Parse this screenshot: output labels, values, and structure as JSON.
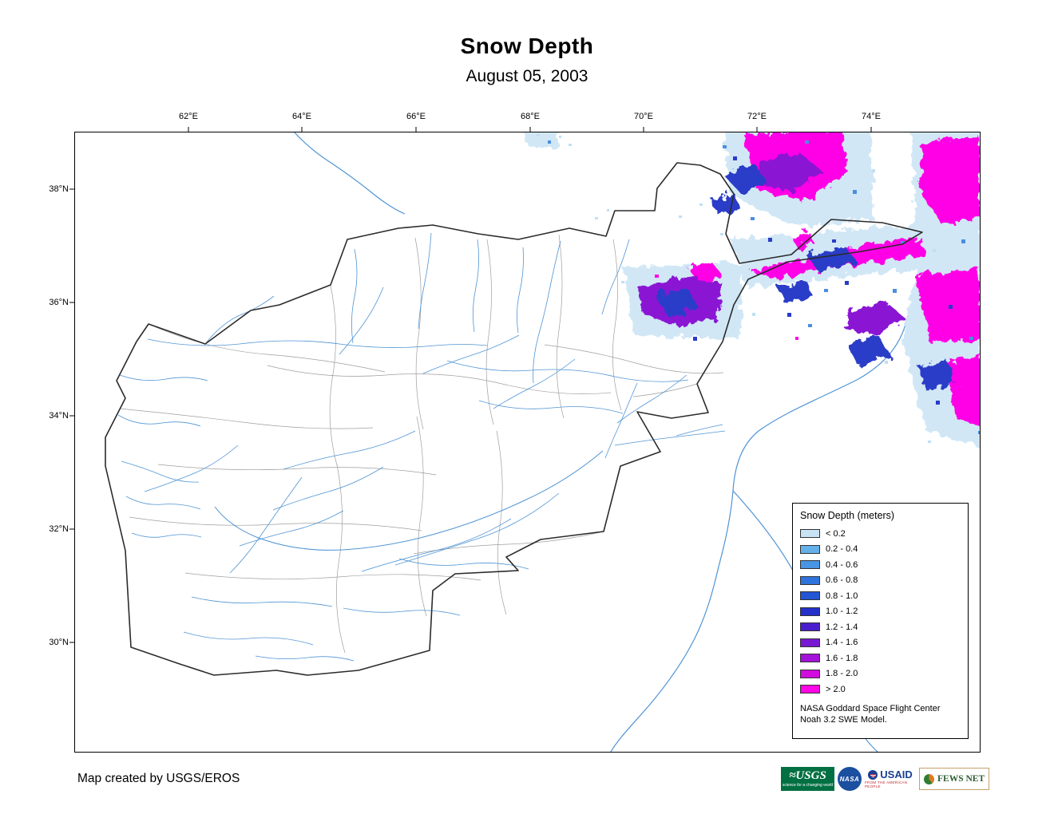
{
  "title": "Snow Depth",
  "subtitle": "August 05, 2003",
  "map": {
    "lon_ticks": [
      "62°E",
      "64°E",
      "66°E",
      "68°E",
      "70°E",
      "72°E",
      "74°E"
    ],
    "lat_ticks": [
      "38°N",
      "36°N",
      "34°N",
      "32°N",
      "30°N"
    ],
    "colors": {
      "country_border": "#2b2b2b",
      "river": "#4f94d4",
      "watershed": "#9e9e9e"
    }
  },
  "legend": {
    "title": "Snow Depth (meters)",
    "items": [
      {
        "label": "< 0.2",
        "color": "#c8e4f4"
      },
      {
        "label": "0.2 - 0.4",
        "color": "#64b1ea"
      },
      {
        "label": "0.4 - 0.6",
        "color": "#4795e4"
      },
      {
        "label": "0.6 - 0.8",
        "color": "#2f74dc"
      },
      {
        "label": "0.8 - 1.0",
        "color": "#2355d4"
      },
      {
        "label": "1.0 - 1.2",
        "color": "#2430c8"
      },
      {
        "label": "1.2 - 1.4",
        "color": "#4b1ecd"
      },
      {
        "label": "1.4 - 1.6",
        "color": "#7718d2"
      },
      {
        "label": "1.6 - 1.8",
        "color": "#a312d8"
      },
      {
        "label": "1.8 - 2.0",
        "color": "#d00cdf"
      },
      {
        "label": "> 2.0",
        "color": "#ff06e6"
      }
    ],
    "attribution_line1": "NASA Goddard Space Flight Center",
    "attribution_line2": "Noah 3.2 SWE Model."
  },
  "footer": {
    "credit": "Map created by USGS/EROS"
  },
  "logos": {
    "usgs": {
      "text": "≈USGS",
      "tagline": "science for a changing world"
    },
    "nasa": {
      "text": "NASA"
    },
    "usaid": {
      "text": "USAID",
      "tagline": "FROM THE AMERICAN PEOPLE"
    },
    "fewsnet": {
      "text": "FEWS NET"
    }
  }
}
